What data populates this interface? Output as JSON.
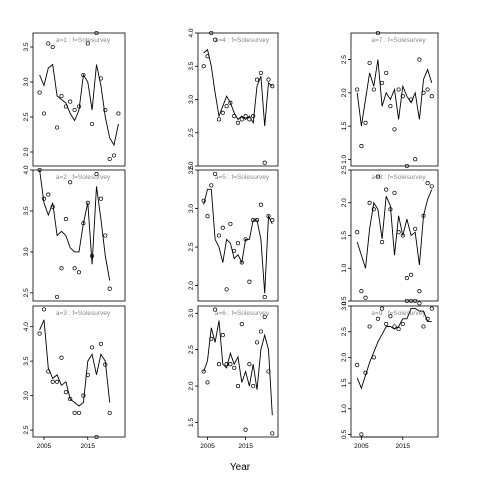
{
  "chart_data": {
    "type": "scatter",
    "xlabel": "Year",
    "x_ticks": [
      "2005",
      "2015"
    ],
    "years": [
      2004,
      2005,
      2006,
      2007,
      2008,
      2009,
      2010,
      2011,
      2012,
      2013,
      2014,
      2015,
      2016,
      2017,
      2018,
      2019,
      2020,
      2021,
      2022
    ],
    "panels": [
      {
        "title": "a=1  :  f=Solesurvey",
        "ylim": [
          1.8,
          3.7
        ],
        "yticks": [
          "2.0",
          "2.5",
          "3.0",
          "3.5"
        ],
        "fit": [
          3.1,
          2.95,
          3.2,
          3.25,
          2.8,
          2.75,
          2.7,
          2.55,
          2.45,
          2.6,
          3.1,
          3.0,
          2.6,
          3.25,
          2.95,
          2.5,
          2.2,
          2.1,
          2.4
        ],
        "obs": [
          2.85,
          2.55,
          3.55,
          3.5,
          2.35,
          2.8,
          2.65,
          2.72,
          2.6,
          2.65,
          3.1,
          3.55,
          2.4,
          3.7,
          3.05,
          2.6,
          1.9,
          1.95,
          2.55
        ]
      },
      {
        "title": "a=4  :  f=Solesurvey",
        "ylim": [
          2.0,
          4.0
        ],
        "yticks": [
          "2.0",
          "2.5",
          "3.0",
          "3.5",
          "4.0"
        ],
        "fit": [
          3.7,
          3.75,
          3.5,
          3.1,
          2.75,
          2.9,
          3.05,
          2.95,
          2.8,
          2.7,
          2.75,
          2.7,
          2.75,
          2.65,
          3.2,
          3.35,
          2.6,
          3.25,
          3.2
        ],
        "obs": [
          3.5,
          3.65,
          4.0,
          3.9,
          2.7,
          2.8,
          2.9,
          2.95,
          2.75,
          2.65,
          2.7,
          2.75,
          2.7,
          2.75,
          3.3,
          3.4,
          2.05,
          3.3,
          3.2
        ]
      },
      {
        "title": "a=7  :  f=Solesurvey",
        "ylim": [
          0.9,
          2.9
        ],
        "yticks": [
          "1.0",
          "1.5",
          "2.0",
          "2.5"
        ],
        "fit": [
          2.0,
          1.5,
          1.9,
          2.3,
          2.1,
          2.5,
          1.8,
          2.0,
          1.9,
          2.05,
          1.6,
          2.1,
          1.95,
          1.85,
          2.0,
          1.6,
          2.2,
          2.35,
          2.15
        ],
        "obs": [
          2.05,
          1.2,
          1.55,
          2.45,
          2.05,
          2.9,
          2.15,
          2.3,
          1.8,
          1.45,
          2.05,
          1.95,
          0.9,
          1.9,
          1.0,
          2.5,
          2.0,
          2.05,
          1.95
        ]
      },
      {
        "title": "a=2  :  f=Solesurvey",
        "ylim": [
          2.4,
          4.0
        ],
        "yticks": [
          "2.5",
          "3.0",
          "3.5",
          "4.0"
        ],
        "fit": [
          4.0,
          3.6,
          3.45,
          3.6,
          3.2,
          3.25,
          3.2,
          3.05,
          3.0,
          3.0,
          3.35,
          3.6,
          2.85,
          3.8,
          3.4,
          2.95,
          2.65
        ],
        "years_override": [
          2004,
          2005,
          2006,
          2007,
          2008,
          2009,
          2010,
          2011,
          2012,
          2013,
          2014,
          2015,
          2016,
          2017,
          2018,
          2019,
          2020
        ],
        "obs": [
          4.0,
          3.65,
          3.7,
          3.55,
          2.45,
          2.8,
          3.4,
          3.85,
          2.8,
          2.75,
          3.35,
          3.6,
          2.95,
          3.95,
          3.65,
          3.2,
          2.55
        ]
      },
      {
        "title": "a=5  :  f=Solesurvey",
        "ylim": [
          1.8,
          3.5
        ],
        "yticks": [
          "2.0",
          "2.5",
          "3.0",
          "3.5"
        ],
        "fit": [
          3.05,
          3.25,
          3.25,
          2.6,
          2.5,
          2.3,
          2.6,
          2.55,
          2.35,
          2.4,
          2.3,
          2.6,
          2.6,
          2.85,
          2.85,
          2.6,
          1.9,
          2.9,
          2.8
        ],
        "obs": [
          3.1,
          2.9,
          3.3,
          3.45,
          2.65,
          2.75,
          1.95,
          2.8,
          2.45,
          2.55,
          2.3,
          2.6,
          2.05,
          2.85,
          2.85,
          3.05,
          1.85,
          2.9,
          2.85
        ]
      },
      {
        "title": "a=8  :  f=Solesurvey",
        "ylim": [
          0.5,
          2.5
        ],
        "yticks": [
          "0.5",
          "1.0",
          "1.5",
          "2.0",
          "2.5"
        ],
        "fit": [
          1.4,
          1.2,
          1.0,
          1.6,
          2.0,
          1.9,
          1.45,
          2.1,
          1.95,
          1.2,
          1.8,
          1.5,
          1.75,
          1.5,
          1.55,
          1.05,
          1.8,
          2.05,
          2.2
        ],
        "obs": [
          1.55,
          0.65,
          0.55,
          2.0,
          1.9,
          2.4,
          1.4,
          2.2,
          1.9,
          2.15,
          1.55,
          1.5,
          0.85,
          0.9,
          1.6,
          0.65,
          1.8,
          2.3,
          2.25
        ]
      },
      {
        "title": "a=3  :  f=Solesurvey",
        "ylim": [
          2.4,
          4.3
        ],
        "yticks": [
          "2.5",
          "3.0",
          "3.5",
          "4.0"
        ],
        "fit": [
          3.95,
          4.1,
          3.4,
          3.25,
          3.3,
          3.15,
          3.2,
          2.95,
          2.9,
          2.85,
          2.9,
          3.5,
          3.6,
          3.3,
          3.6,
          3.5,
          2.9
        ],
        "years_override": [
          2004,
          2005,
          2006,
          2007,
          2008,
          2009,
          2010,
          2011,
          2012,
          2013,
          2014,
          2015,
          2016,
          2017,
          2018,
          2019,
          2020
        ],
        "obs": [
          3.9,
          4.25,
          3.35,
          3.2,
          3.2,
          3.55,
          3.05,
          2.95,
          2.75,
          2.75,
          3.0,
          3.3,
          3.7,
          2.4,
          3.75,
          3.45,
          2.75
        ]
      },
      {
        "title": "a=6  :  f=Solesurvey",
        "ylim": [
          1.3,
          3.1
        ],
        "yticks": [
          "1.5",
          "2.0",
          "2.5",
          "3.0"
        ],
        "fit": [
          2.2,
          2.35,
          2.8,
          2.6,
          2.9,
          2.3,
          2.25,
          2.45,
          2.3,
          2.4,
          2.05,
          2.2,
          2.0,
          2.3,
          1.95,
          2.5,
          2.7,
          2.5,
          1.6
        ],
        "obs": [
          2.2,
          2.05,
          2.65,
          3.05,
          2.3,
          2.7,
          2.3,
          2.3,
          2.25,
          2.0,
          2.85,
          1.4,
          2.3,
          2.0,
          2.6,
          2.75,
          2.95,
          2.2,
          1.35
        ]
      },
      {
        "title": "a=9  :  f=Solesurvey",
        "ylim": [
          0.45,
          3.0
        ],
        "yticks": [
          "0.5",
          "1.0",
          "1.5",
          "2.0",
          "2.5",
          "3.0"
        ],
        "fit": [
          1.6,
          1.4,
          1.65,
          1.9,
          2.1,
          2.3,
          2.45,
          2.6,
          2.6,
          2.55,
          2.6,
          2.75,
          2.75,
          2.95,
          2.95,
          2.9,
          2.9,
          2.7,
          2.7
        ],
        "obs": [
          1.85,
          0.5,
          1.7,
          2.6,
          2.0,
          2.75,
          2.95,
          2.65,
          2.8,
          2.6,
          2.55,
          2.65,
          3.1,
          3.1,
          3.1,
          3.05,
          2.6,
          2.75,
          2.95
        ]
      }
    ]
  }
}
